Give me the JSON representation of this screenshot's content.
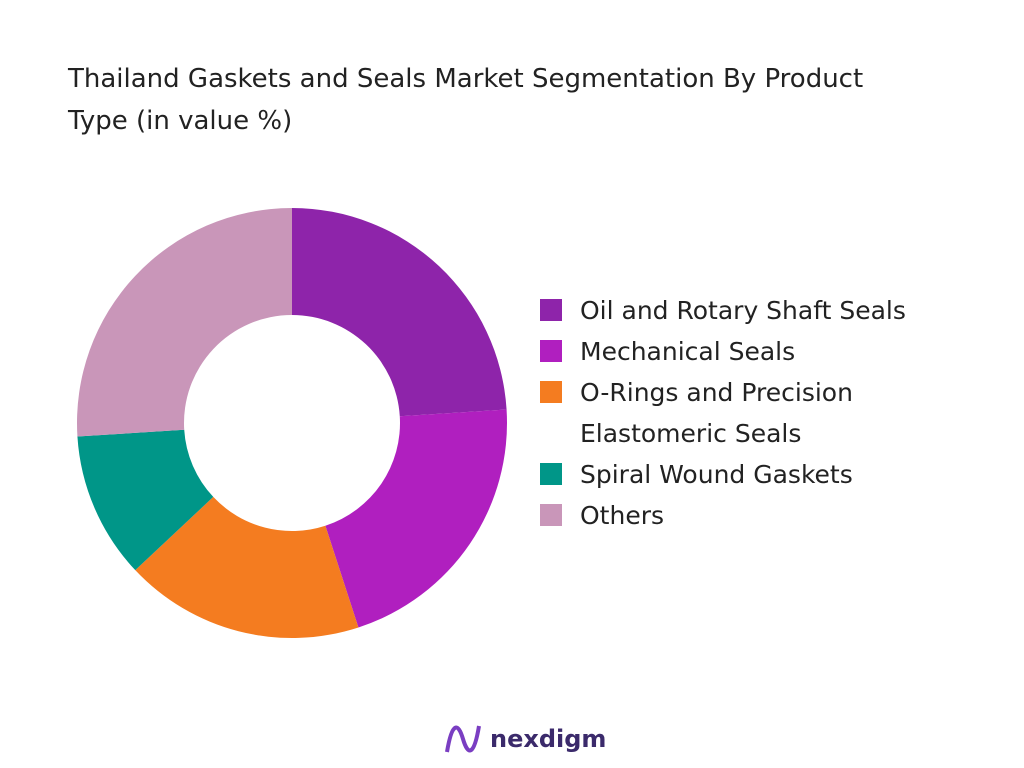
{
  "chart_data": {
    "type": "donut",
    "title": "Thailand Gaskets and Seals Market Segmentation By Product Type (in value %)",
    "categories": [
      "Oil and Rotary Shaft Seals",
      "Mechanical Seals",
      "O-Rings and Precision Elastomeric Seals",
      "Spiral Wound Gaskets",
      "Others"
    ],
    "values": [
      24,
      21,
      18,
      11,
      26
    ],
    "colors": [
      "#8e24aa",
      "#b01fbf",
      "#f47c20",
      "#009688",
      "#c996b9"
    ]
  },
  "logo": "nexdigm"
}
